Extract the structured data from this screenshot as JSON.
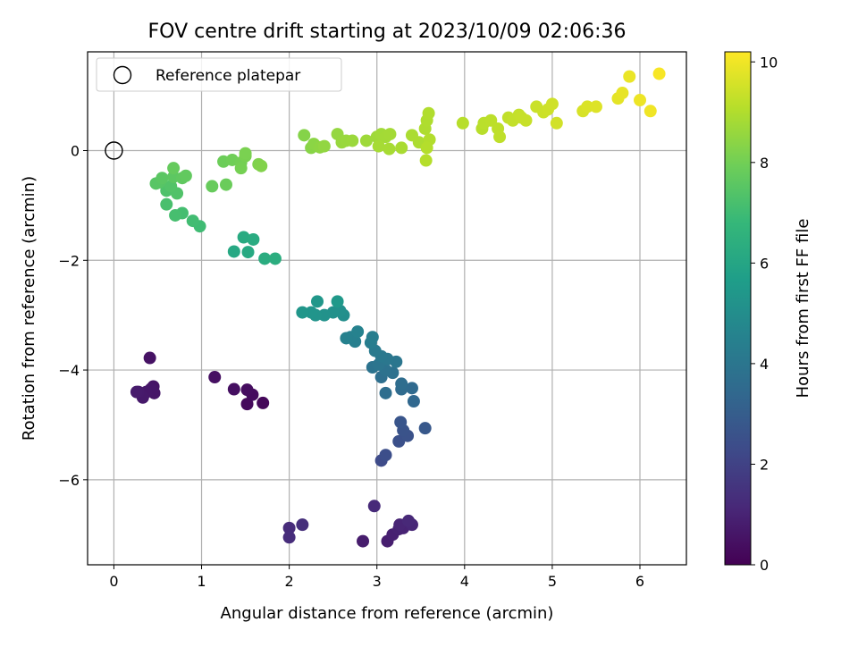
{
  "chart_data": {
    "type": "scatter",
    "title": "FOV centre drift starting at 2023/10/09 02:06:36",
    "xlabel": "Angular distance from reference (arcmin)",
    "ylabel": "Rotation from reference (arcmin)",
    "xlim": [
      -0.3,
      6.53
    ],
    "ylim": [
      -7.55,
      1.8
    ],
    "x_ticks": [
      0,
      1,
      2,
      3,
      4,
      5,
      6
    ],
    "y_ticks": [
      -6,
      -4,
      -2,
      0
    ],
    "grid": true,
    "legend": {
      "position": "top-left",
      "entries": [
        "Reference platepar"
      ]
    },
    "colorbar": {
      "label": "Hours from first FF file",
      "range": [
        0,
        10.2
      ],
      "ticks": [
        0,
        2,
        4,
        6,
        8,
        10
      ],
      "colormap": "viridis"
    },
    "reference_point": {
      "x": 0,
      "y": 0,
      "label": "Reference platepar"
    },
    "points": [
      {
        "x": 1.7,
        "y": -4.6,
        "t": 0.2
      },
      {
        "x": 1.52,
        "y": -4.62,
        "t": 0.25
      },
      {
        "x": 1.58,
        "y": -4.45,
        "t": 0.3
      },
      {
        "x": 1.52,
        "y": -4.36,
        "t": 0.35
      },
      {
        "x": 1.37,
        "y": -4.35,
        "t": 0.4
      },
      {
        "x": 1.15,
        "y": -4.13,
        "t": 0.45
      },
      {
        "x": 0.41,
        "y": -3.78,
        "t": 0.5
      },
      {
        "x": 0.45,
        "y": -4.3,
        "t": 0.55
      },
      {
        "x": 0.46,
        "y": -4.42,
        "t": 0.6
      },
      {
        "x": 0.42,
        "y": -4.35,
        "t": 0.62
      },
      {
        "x": 0.37,
        "y": -4.4,
        "t": 0.65
      },
      {
        "x": 0.33,
        "y": -4.5,
        "t": 0.7
      },
      {
        "x": 0.28,
        "y": -4.4,
        "t": 0.72
      },
      {
        "x": 0.26,
        "y": -4.4,
        "t": 0.75
      },
      {
        "x": 2.84,
        "y": -7.12,
        "t": 0.8
      },
      {
        "x": 3.12,
        "y": -7.12,
        "t": 0.85
      },
      {
        "x": 3.18,
        "y": -7.0,
        "t": 0.9
      },
      {
        "x": 3.25,
        "y": -6.9,
        "t": 0.95
      },
      {
        "x": 3.3,
        "y": -6.88,
        "t": 1.0
      },
      {
        "x": 3.26,
        "y": -6.82,
        "t": 1.05
      },
      {
        "x": 3.4,
        "y": -6.82,
        "t": 1.1
      },
      {
        "x": 3.36,
        "y": -6.75,
        "t": 1.15
      },
      {
        "x": 2.97,
        "y": -6.48,
        "t": 1.2
      },
      {
        "x": 2.0,
        "y": -6.88,
        "t": 1.25
      },
      {
        "x": 2.0,
        "y": -7.05,
        "t": 1.3
      },
      {
        "x": 2.15,
        "y": -6.82,
        "t": 1.35
      },
      {
        "x": 3.05,
        "y": -5.65,
        "t": 2.3
      },
      {
        "x": 3.1,
        "y": -5.55,
        "t": 2.4
      },
      {
        "x": 3.25,
        "y": -5.3,
        "t": 2.5
      },
      {
        "x": 3.35,
        "y": -5.2,
        "t": 2.55
      },
      {
        "x": 3.3,
        "y": -5.1,
        "t": 2.6
      },
      {
        "x": 3.27,
        "y": -4.95,
        "t": 2.7
      },
      {
        "x": 3.55,
        "y": -5.06,
        "t": 2.8
      },
      {
        "x": 3.42,
        "y": -4.57,
        "t": 3.4
      },
      {
        "x": 3.4,
        "y": -4.33,
        "t": 3.5
      },
      {
        "x": 3.28,
        "y": -4.35,
        "t": 3.55
      },
      {
        "x": 3.28,
        "y": -4.25,
        "t": 3.6
      },
      {
        "x": 3.1,
        "y": -4.42,
        "t": 3.65
      },
      {
        "x": 3.05,
        "y": -4.13,
        "t": 3.7
      },
      {
        "x": 3.18,
        "y": -4.05,
        "t": 3.8
      },
      {
        "x": 3.1,
        "y": -4.0,
        "t": 3.85
      },
      {
        "x": 2.95,
        "y": -3.95,
        "t": 3.9
      },
      {
        "x": 3.02,
        "y": -3.9,
        "t": 3.95
      },
      {
        "x": 3.22,
        "y": -3.85,
        "t": 4.0
      },
      {
        "x": 3.12,
        "y": -3.8,
        "t": 4.05
      },
      {
        "x": 3.05,
        "y": -3.75,
        "t": 4.1
      },
      {
        "x": 2.98,
        "y": -3.65,
        "t": 4.2
      },
      {
        "x": 2.93,
        "y": -3.5,
        "t": 4.3
      },
      {
        "x": 2.95,
        "y": -3.4,
        "t": 4.35
      },
      {
        "x": 2.75,
        "y": -3.48,
        "t": 4.4
      },
      {
        "x": 2.7,
        "y": -3.4,
        "t": 4.45
      },
      {
        "x": 2.65,
        "y": -3.42,
        "t": 4.5
      },
      {
        "x": 2.78,
        "y": -3.3,
        "t": 4.55
      },
      {
        "x": 2.62,
        "y": -3.0,
        "t": 5.0
      },
      {
        "x": 2.58,
        "y": -2.92,
        "t": 5.1
      },
      {
        "x": 2.5,
        "y": -2.95,
        "t": 5.15
      },
      {
        "x": 2.4,
        "y": -3.0,
        "t": 5.2
      },
      {
        "x": 2.3,
        "y": -3.0,
        "t": 5.25
      },
      {
        "x": 2.25,
        "y": -2.95,
        "t": 5.3
      },
      {
        "x": 2.15,
        "y": -2.95,
        "t": 5.35
      },
      {
        "x": 2.32,
        "y": -2.75,
        "t": 5.4
      },
      {
        "x": 2.55,
        "y": -2.75,
        "t": 5.45
      },
      {
        "x": 1.37,
        "y": -1.84,
        "t": 6.1
      },
      {
        "x": 1.53,
        "y": -1.85,
        "t": 6.15
      },
      {
        "x": 1.48,
        "y": -1.58,
        "t": 6.2
      },
      {
        "x": 1.59,
        "y": -1.62,
        "t": 6.25
      },
      {
        "x": 1.72,
        "y": -1.97,
        "t": 6.3
      },
      {
        "x": 1.84,
        "y": -1.97,
        "t": 6.35
      },
      {
        "x": 0.98,
        "y": -1.38,
        "t": 7.0
      },
      {
        "x": 0.9,
        "y": -1.28,
        "t": 7.05
      },
      {
        "x": 0.78,
        "y": -1.14,
        "t": 7.1
      },
      {
        "x": 0.7,
        "y": -1.18,
        "t": 7.15
      },
      {
        "x": 0.6,
        "y": -0.98,
        "t": 7.2
      },
      {
        "x": 0.6,
        "y": -0.73,
        "t": 7.3
      },
      {
        "x": 0.72,
        "y": -0.78,
        "t": 7.35
      },
      {
        "x": 0.65,
        "y": -0.65,
        "t": 7.4
      },
      {
        "x": 0.52,
        "y": -0.58,
        "t": 7.45
      },
      {
        "x": 0.48,
        "y": -0.6,
        "t": 7.5
      },
      {
        "x": 0.55,
        "y": -0.5,
        "t": 7.55
      },
      {
        "x": 0.68,
        "y": -0.48,
        "t": 7.6
      },
      {
        "x": 0.78,
        "y": -0.5,
        "t": 7.65
      },
      {
        "x": 0.82,
        "y": -0.46,
        "t": 7.7
      },
      {
        "x": 0.68,
        "y": -0.32,
        "t": 7.75
      },
      {
        "x": 1.12,
        "y": -0.65,
        "t": 7.8
      },
      {
        "x": 1.28,
        "y": -0.62,
        "t": 7.85
      },
      {
        "x": 1.25,
        "y": -0.2,
        "t": 7.9
      },
      {
        "x": 1.35,
        "y": -0.17,
        "t": 7.95
      },
      {
        "x": 1.45,
        "y": -0.22,
        "t": 8.0
      },
      {
        "x": 1.45,
        "y": -0.32,
        "t": 8.05
      },
      {
        "x": 1.5,
        "y": -0.1,
        "t": 8.1
      },
      {
        "x": 1.5,
        "y": -0.05,
        "t": 8.12
      },
      {
        "x": 1.65,
        "y": -0.25,
        "t": 8.2
      },
      {
        "x": 1.68,
        "y": -0.28,
        "t": 8.25
      },
      {
        "x": 2.17,
        "y": 0.28,
        "t": 8.3
      },
      {
        "x": 2.25,
        "y": 0.05,
        "t": 8.35
      },
      {
        "x": 2.28,
        "y": 0.12,
        "t": 8.4
      },
      {
        "x": 2.35,
        "y": 0.06,
        "t": 8.45
      },
      {
        "x": 2.4,
        "y": 0.08,
        "t": 8.5
      },
      {
        "x": 2.55,
        "y": 0.3,
        "t": 8.55
      },
      {
        "x": 2.6,
        "y": 0.15,
        "t": 8.6
      },
      {
        "x": 2.65,
        "y": 0.18,
        "t": 8.62
      },
      {
        "x": 2.72,
        "y": 0.18,
        "t": 8.65
      },
      {
        "x": 2.88,
        "y": 0.18,
        "t": 8.7
      },
      {
        "x": 3.0,
        "y": 0.25,
        "t": 8.72
      },
      {
        "x": 3.05,
        "y": 0.3,
        "t": 8.75
      },
      {
        "x": 3.1,
        "y": 0.25,
        "t": 8.78
      },
      {
        "x": 3.15,
        "y": 0.3,
        "t": 8.8
      },
      {
        "x": 3.02,
        "y": 0.08,
        "t": 8.82
      },
      {
        "x": 3.14,
        "y": 0.03,
        "t": 8.85
      },
      {
        "x": 3.28,
        "y": 0.05,
        "t": 8.88
      },
      {
        "x": 3.4,
        "y": 0.28,
        "t": 8.9
      },
      {
        "x": 3.48,
        "y": 0.15,
        "t": 8.92
      },
      {
        "x": 3.55,
        "y": 0.4,
        "t": 8.95
      },
      {
        "x": 3.57,
        "y": 0.55,
        "t": 8.97
      },
      {
        "x": 3.59,
        "y": 0.68,
        "t": 9.0
      },
      {
        "x": 3.6,
        "y": 0.2,
        "t": 9.02
      },
      {
        "x": 3.57,
        "y": 0.05,
        "t": 9.05
      },
      {
        "x": 3.56,
        "y": -0.18,
        "t": 9.07
      },
      {
        "x": 3.98,
        "y": 0.5,
        "t": 9.1
      },
      {
        "x": 4.2,
        "y": 0.4,
        "t": 9.12
      },
      {
        "x": 4.22,
        "y": 0.5,
        "t": 9.15
      },
      {
        "x": 4.3,
        "y": 0.55,
        "t": 9.18
      },
      {
        "x": 4.38,
        "y": 0.4,
        "t": 9.2
      },
      {
        "x": 4.4,
        "y": 0.25,
        "t": 9.22
      },
      {
        "x": 4.5,
        "y": 0.6,
        "t": 9.25
      },
      {
        "x": 4.55,
        "y": 0.55,
        "t": 9.28
      },
      {
        "x": 4.62,
        "y": 0.65,
        "t": 9.3
      },
      {
        "x": 4.65,
        "y": 0.6,
        "t": 9.33
      },
      {
        "x": 4.7,
        "y": 0.55,
        "t": 9.35
      },
      {
        "x": 4.82,
        "y": 0.8,
        "t": 9.4
      },
      {
        "x": 4.9,
        "y": 0.7,
        "t": 9.42
      },
      {
        "x": 4.95,
        "y": 0.75,
        "t": 9.45
      },
      {
        "x": 5.0,
        "y": 0.85,
        "t": 9.48
      },
      {
        "x": 5.05,
        "y": 0.5,
        "t": 9.5
      },
      {
        "x": 5.35,
        "y": 0.72,
        "t": 9.6
      },
      {
        "x": 5.4,
        "y": 0.8,
        "t": 9.65
      },
      {
        "x": 5.5,
        "y": 0.8,
        "t": 9.7
      },
      {
        "x": 5.75,
        "y": 0.95,
        "t": 9.8
      },
      {
        "x": 5.8,
        "y": 1.05,
        "t": 9.85
      },
      {
        "x": 5.88,
        "y": 1.35,
        "t": 9.9
      },
      {
        "x": 6.0,
        "y": 0.92,
        "t": 9.95
      },
      {
        "x": 6.12,
        "y": 0.72,
        "t": 10.0
      },
      {
        "x": 6.22,
        "y": 1.4,
        "t": 10.1
      }
    ]
  }
}
